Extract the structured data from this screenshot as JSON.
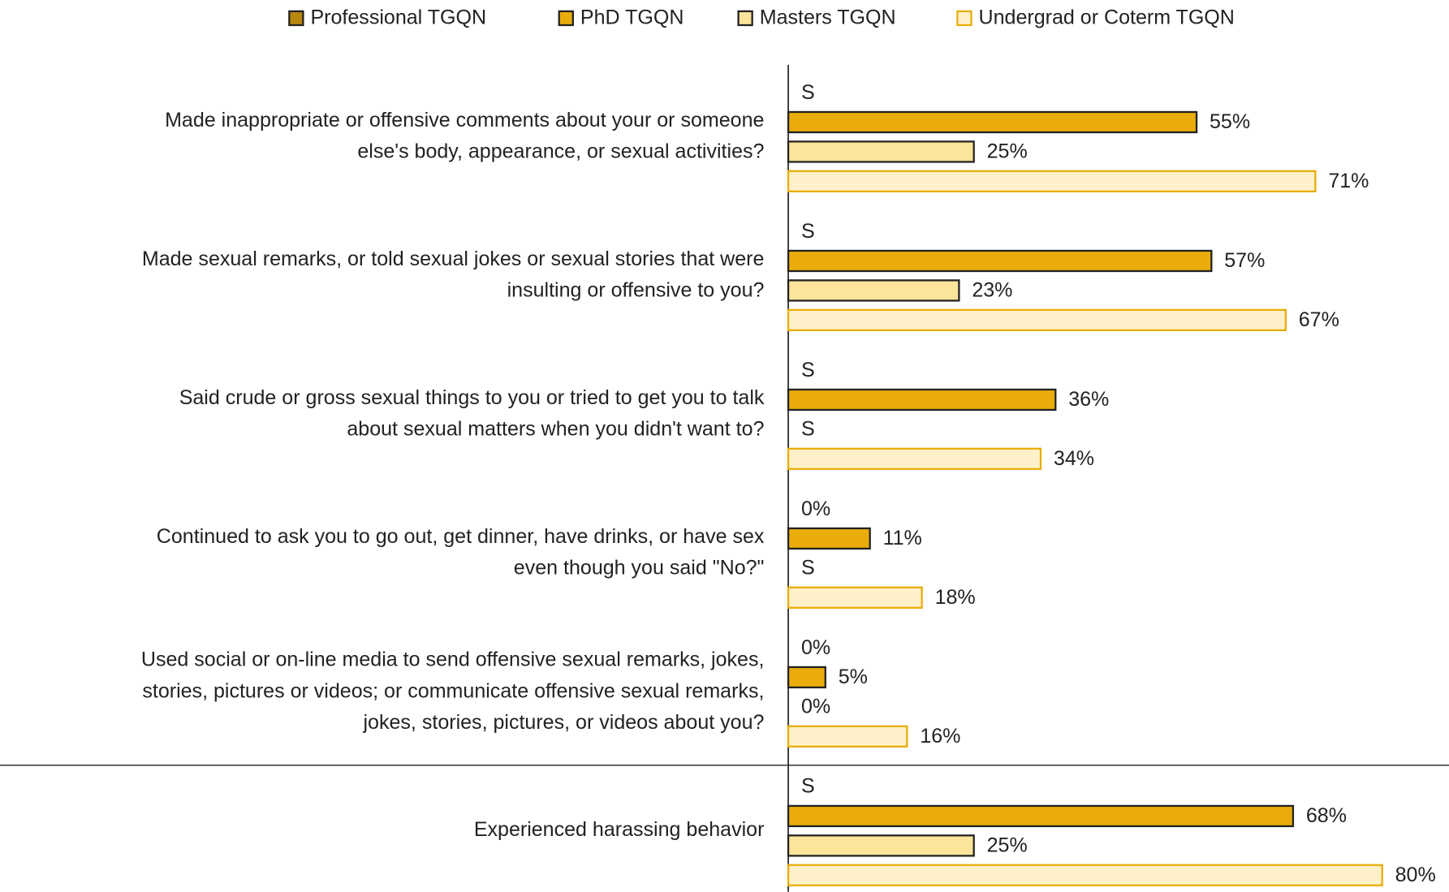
{
  "chart_data": {
    "type": "barh",
    "categories": [
      [
        "Made inappropriate or offensive comments about your or someone",
        "else's body, appearance, or sexual activities?"
      ],
      [
        "Made sexual remarks, or told sexual jokes or sexual stories that were",
        "insulting or offensive to you?"
      ],
      [
        "Said crude or gross sexual things to you or tried to get you to talk",
        "about sexual matters when you didn't want to?"
      ],
      [
        "Continued to ask you to go out, get dinner, have drinks, or have sex",
        "even though you said \"No?\""
      ],
      [
        "Used social or on-line media to send offensive sexual remarks, jokes,",
        "stories, pictures or videos; or communicate offensive sexual remarks,",
        "jokes, stories, pictures, or videos about you?"
      ],
      [
        "Experienced harassing behavior"
      ]
    ],
    "series": [
      {
        "name": "Professional TGQN",
        "color": "#b8860b",
        "edgecolor": "#222222",
        "values": [
          null,
          null,
          null,
          0,
          0,
          null
        ],
        "value_labels": [
          "S",
          "S",
          "S",
          "0%",
          "0%",
          "S"
        ]
      },
      {
        "name": "PhD TGQN",
        "color": "#e9ac0a",
        "edgecolor": "#222222",
        "values": [
          55,
          57,
          36,
          11,
          5,
          68
        ],
        "value_labels": [
          "55%",
          "57%",
          "36%",
          "11%",
          "5%",
          "68%"
        ]
      },
      {
        "name": "Masters TGQN",
        "color": "#fde49b",
        "edgecolor": "#222222",
        "values": [
          25,
          23,
          null,
          null,
          0,
          25
        ],
        "value_labels": [
          "25%",
          "23%",
          "S",
          "S",
          "0%",
          "25%"
        ]
      },
      {
        "name": "Undergrad or Coterm TGQN",
        "color": "#fef1ca",
        "edgecolor": "#e9ac0a",
        "values": [
          71,
          67,
          34,
          18,
          16,
          80
        ],
        "value_labels": [
          "71%",
          "67%",
          "34%",
          "18%",
          "16%",
          "80%"
        ]
      }
    ],
    "xlim": [
      0,
      89
    ],
    "legend": "top"
  }
}
